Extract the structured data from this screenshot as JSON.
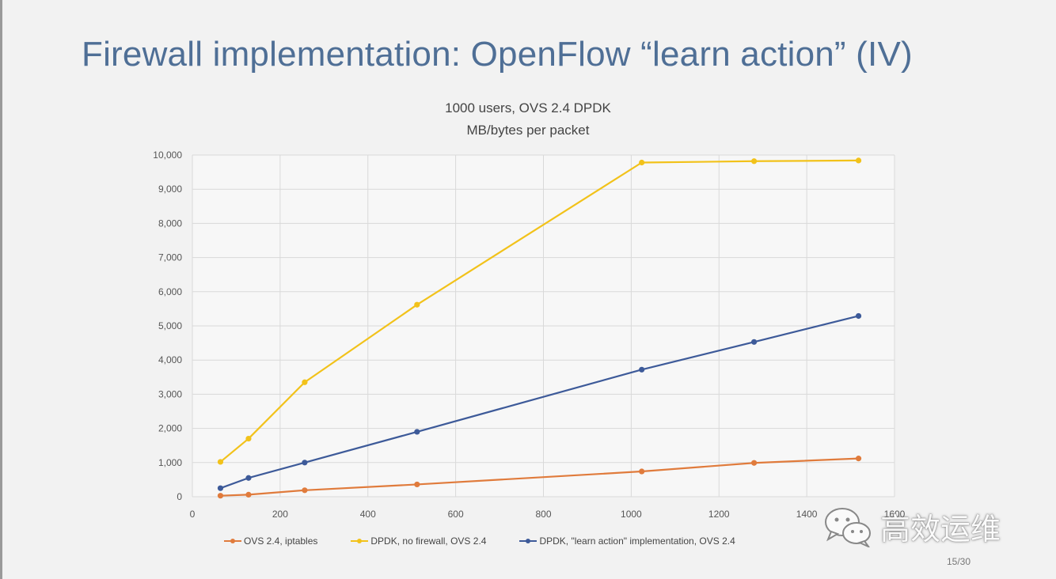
{
  "slide": {
    "title": "Firewall implementation: OpenFlow “learn action” (IV)",
    "page_number": "15/30"
  },
  "watermark": {
    "text": "高效运维",
    "icon": "wechat-icon"
  },
  "colors": {
    "title": "#4f6f96",
    "ovs_iptables": "#e07b3c",
    "dpdk_no_firewall": "#f2c21a",
    "dpdk_learn_action": "#3d5a99",
    "grid": "#d9d9d9"
  },
  "chart_data": {
    "type": "line",
    "title": "1000 users, OVS 2.4 DPDK",
    "subtitle": "MB/bytes per packet",
    "xlabel": "",
    "ylabel": "",
    "xlim": [
      0,
      1600
    ],
    "ylim": [
      0,
      10000
    ],
    "x_ticks": [
      0,
      200,
      400,
      600,
      800,
      1000,
      1200,
      1400,
      1600
    ],
    "x_tick_labels": [
      "0",
      "200",
      "400",
      "600",
      "800",
      "1000",
      "1200",
      "1400",
      "1600"
    ],
    "y_ticks": [
      0,
      1000,
      2000,
      3000,
      4000,
      5000,
      6000,
      7000,
      8000,
      9000,
      10000
    ],
    "y_tick_labels": [
      "0",
      "1,000",
      "2,000",
      "3,000",
      "4,000",
      "5,000",
      "6,000",
      "7,000",
      "8,000",
      "9,000",
      "10,000"
    ],
    "grid": true,
    "legend_position": "bottom",
    "x": [
      64,
      128,
      256,
      512,
      1024,
      1280,
      1518
    ],
    "series": [
      {
        "name": "OVS 2.4, iptables",
        "color": "#e07b3c",
        "values": [
          30,
          60,
          190,
          360,
          740,
          990,
          1120
        ]
      },
      {
        "name": "DPDK, no firewall, OVS 2.4",
        "color": "#f2c21a",
        "values": [
          1020,
          1700,
          3350,
          5620,
          9780,
          9820,
          9840
        ]
      },
      {
        "name": "DPDK, \"learn action\" implementation, OVS 2.4",
        "color": "#3d5a99",
        "values": [
          250,
          550,
          1000,
          1900,
          3720,
          4530,
          5290
        ]
      }
    ]
  }
}
